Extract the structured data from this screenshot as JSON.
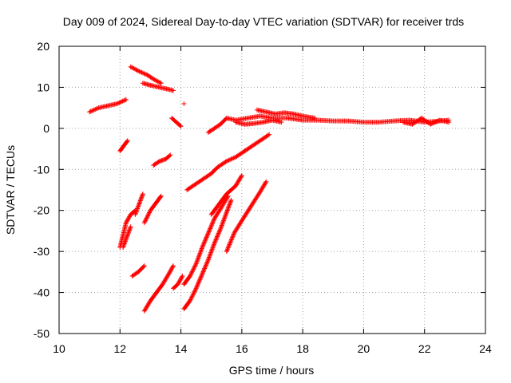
{
  "chart_data": {
    "type": "scatter",
    "title": "Day 009 of 2024, Sidereal Day-to-day VTEC variation (SDTVAR) for receiver trds",
    "xlabel": "GPS time / hours",
    "ylabel": "SDTVAR / TECUs",
    "xlim": [
      10,
      24
    ],
    "ylim": [
      -50,
      20
    ],
    "xticks": [
      "10",
      "12",
      "14",
      "16",
      "18",
      "20",
      "22",
      "24"
    ],
    "yticks": [
      "20",
      "10",
      "0",
      "-10",
      "-20",
      "-30",
      "-40",
      "-50"
    ],
    "xtick_values": [
      10,
      12,
      14,
      16,
      18,
      20,
      22,
      24
    ],
    "ytick_values": [
      20,
      10,
      0,
      -10,
      -20,
      -30,
      -40,
      -50
    ],
    "grid": true,
    "marker": "+",
    "color": "#ff0000",
    "segments": [
      {
        "name": "arc-a",
        "x": [
          11.0,
          11.3,
          11.6,
          11.9,
          12.2
        ],
        "y": [
          4.0,
          5.0,
          5.5,
          6.0,
          7.0
        ]
      },
      {
        "name": "arc-b",
        "x": [
          12.35,
          12.6,
          12.9,
          13.1,
          13.35
        ],
        "y": [
          15.0,
          14.0,
          13.0,
          12.0,
          11.0
        ]
      },
      {
        "name": "arc-c",
        "x": [
          12.75,
          13.0,
          13.3,
          13.6,
          13.75
        ],
        "y": [
          11.0,
          10.5,
          10.0,
          9.5,
          9.2
        ]
      },
      {
        "name": "arc-d",
        "x": [
          13.7,
          13.85,
          14.0
        ],
        "y": [
          2.5,
          1.5,
          0.5
        ]
      },
      {
        "name": "arc-e",
        "x": [
          14.1
        ],
        "y": [
          6.0
        ]
      },
      {
        "name": "arc-f",
        "x": [
          12.0,
          12.1,
          12.25
        ],
        "y": [
          -5.5,
          -4.5,
          -3.0
        ]
      },
      {
        "name": "arc-g",
        "x": [
          13.1,
          13.3,
          13.5,
          13.65
        ],
        "y": [
          -9.0,
          -8.0,
          -7.5,
          -6.5
        ]
      },
      {
        "name": "arc-h",
        "x": [
          12.0,
          12.1,
          12.2,
          12.35,
          12.5
        ],
        "y": [
          -29.0,
          -26.0,
          -23.0,
          -21.0,
          -20.0
        ]
      },
      {
        "name": "arc-i",
        "x": [
          12.1,
          12.2,
          12.35
        ],
        "y": [
          -29.0,
          -27.0,
          -24.0
        ]
      },
      {
        "name": "arc-j",
        "x": [
          12.5,
          12.6,
          12.75
        ],
        "y": [
          -21.0,
          -19.0,
          -16.0
        ]
      },
      {
        "name": "arc-k",
        "x": [
          12.8,
          13.0,
          13.2,
          13.35
        ],
        "y": [
          -23.0,
          -20.0,
          -18.0,
          -16.5
        ]
      },
      {
        "name": "arc-l",
        "x": [
          12.4,
          12.6,
          12.8
        ],
        "y": [
          -36.0,
          -35.0,
          -33.5
        ]
      },
      {
        "name": "arc-m",
        "x": [
          12.8,
          13.0,
          13.2,
          13.4,
          13.6,
          13.75
        ],
        "y": [
          -44.5,
          -42.0,
          -40.0,
          -38.0,
          -35.5,
          -33.5
        ]
      },
      {
        "name": "arc-n",
        "x": [
          13.75,
          13.9,
          14.05
        ],
        "y": [
          -39.0,
          -38.0,
          -36.0
        ]
      },
      {
        "name": "arc-o",
        "x": [
          14.1,
          14.3,
          14.5,
          14.7,
          14.9,
          15.1,
          15.35,
          15.55
        ],
        "y": [
          -38.0,
          -36.0,
          -33.0,
          -29.0,
          -25.5,
          -22.0,
          -19.0,
          -16.5
        ]
      },
      {
        "name": "arc-p",
        "x": [
          14.1,
          14.3,
          14.5,
          14.7,
          14.9,
          15.1,
          15.3,
          15.5,
          15.65
        ],
        "y": [
          -44.0,
          -42.0,
          -39.0,
          -35.5,
          -32.0,
          -28.0,
          -24.5,
          -20.5,
          -17.5
        ]
      },
      {
        "name": "arc-q",
        "x": [
          15.5,
          15.75,
          16.0,
          16.3,
          16.6,
          16.8
        ],
        "y": [
          -30.0,
          -25.5,
          -22.5,
          -19.0,
          -15.5,
          -13.0
        ]
      },
      {
        "name": "arc-r",
        "x": [
          14.2,
          14.5,
          14.8,
          15.0,
          15.2,
          15.5,
          15.8,
          16.1
        ],
        "y": [
          -15.0,
          -13.5,
          -12.0,
          -11.0,
          -9.5,
          -8.0,
          -7.0,
          -5.5
        ]
      },
      {
        "name": "arc-s",
        "x": [
          15.0,
          15.3,
          15.5,
          15.8,
          16.0
        ],
        "y": [
          -21.0,
          -18.0,
          -16.0,
          -14.0,
          -11.5
        ]
      },
      {
        "name": "arc-t",
        "x": [
          16.1,
          16.4,
          16.7,
          16.9
        ],
        "y": [
          -5.5,
          -4.0,
          -2.5,
          -1.5
        ]
      },
      {
        "name": "arc-u",
        "x": [
          14.9,
          15.1,
          15.3,
          15.5,
          15.8,
          16.2,
          16.6,
          17.0,
          17.5,
          18.0,
          18.5,
          19.0,
          19.5,
          20.0,
          20.5,
          21.0,
          21.5,
          22.0,
          22.5,
          22.8
        ],
        "y": [
          -1.0,
          0.0,
          1.0,
          2.5,
          2.0,
          2.5,
          3.0,
          2.5,
          2.5,
          2.0,
          2.0,
          1.8,
          1.8,
          1.5,
          1.5,
          1.8,
          2.0,
          1.5,
          1.8,
          2.0
        ]
      },
      {
        "name": "arc-v",
        "x": [
          16.5,
          16.8,
          17.1,
          17.4,
          17.7,
          18.0,
          18.4
        ],
        "y": [
          4.5,
          4.0,
          3.5,
          3.8,
          3.5,
          3.0,
          2.5
        ]
      },
      {
        "name": "arc-w",
        "x": [
          15.8,
          16.1,
          16.4,
          16.7,
          17.0,
          17.3
        ],
        "y": [
          1.5,
          1.0,
          1.2,
          1.5,
          2.0,
          1.5
        ]
      },
      {
        "name": "arc-x",
        "x": [
          21.3,
          21.6,
          21.9,
          22.2,
          22.5,
          22.8
        ],
        "y": [
          1.5,
          1.0,
          2.5,
          1.0,
          2.0,
          1.5
        ]
      }
    ]
  }
}
